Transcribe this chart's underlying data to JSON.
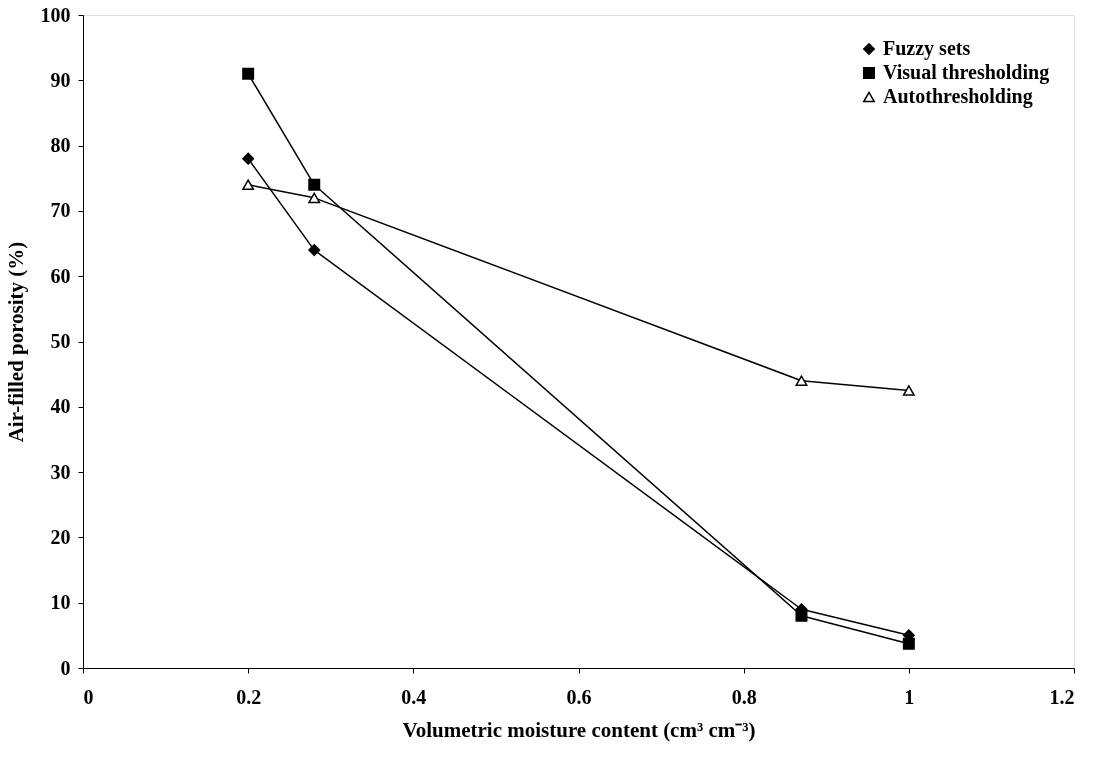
{
  "chart_data": {
    "type": "line",
    "xlabel": "Volumetric moisture content (cm³ cm⁻³)",
    "ylabel": "Air-filled porosity (%)",
    "xlim": [
      0,
      1.2
    ],
    "xticks": [
      0,
      0.2,
      0.4,
      0.6,
      0.8,
      1,
      1.2
    ],
    "ylim": [
      0,
      100
    ],
    "yticks": [
      0,
      10,
      20,
      30,
      40,
      50,
      60,
      70,
      80,
      90,
      100
    ],
    "grid": false,
    "legend": "top right",
    "series": [
      {
        "name": "Fuzzy sets",
        "color": "#000000",
        "marker": "diamond",
        "x": [
          0.2,
          0.28,
          0.87,
          1
        ],
        "values": [
          78,
          64,
          9,
          5
        ]
      },
      {
        "name": "Visual thresholding",
        "color": "#000000",
        "marker": "square",
        "x": [
          0.2,
          0.28,
          0.87,
          1
        ],
        "values": [
          91,
          74,
          8,
          3.7
        ]
      },
      {
        "name": "Autothresholding",
        "color": "#000000",
        "marker": "triangle",
        "x": [
          0.2,
          0.28,
          0.87,
          1
        ],
        "values": [
          74,
          72,
          44,
          42.5
        ]
      }
    ]
  }
}
